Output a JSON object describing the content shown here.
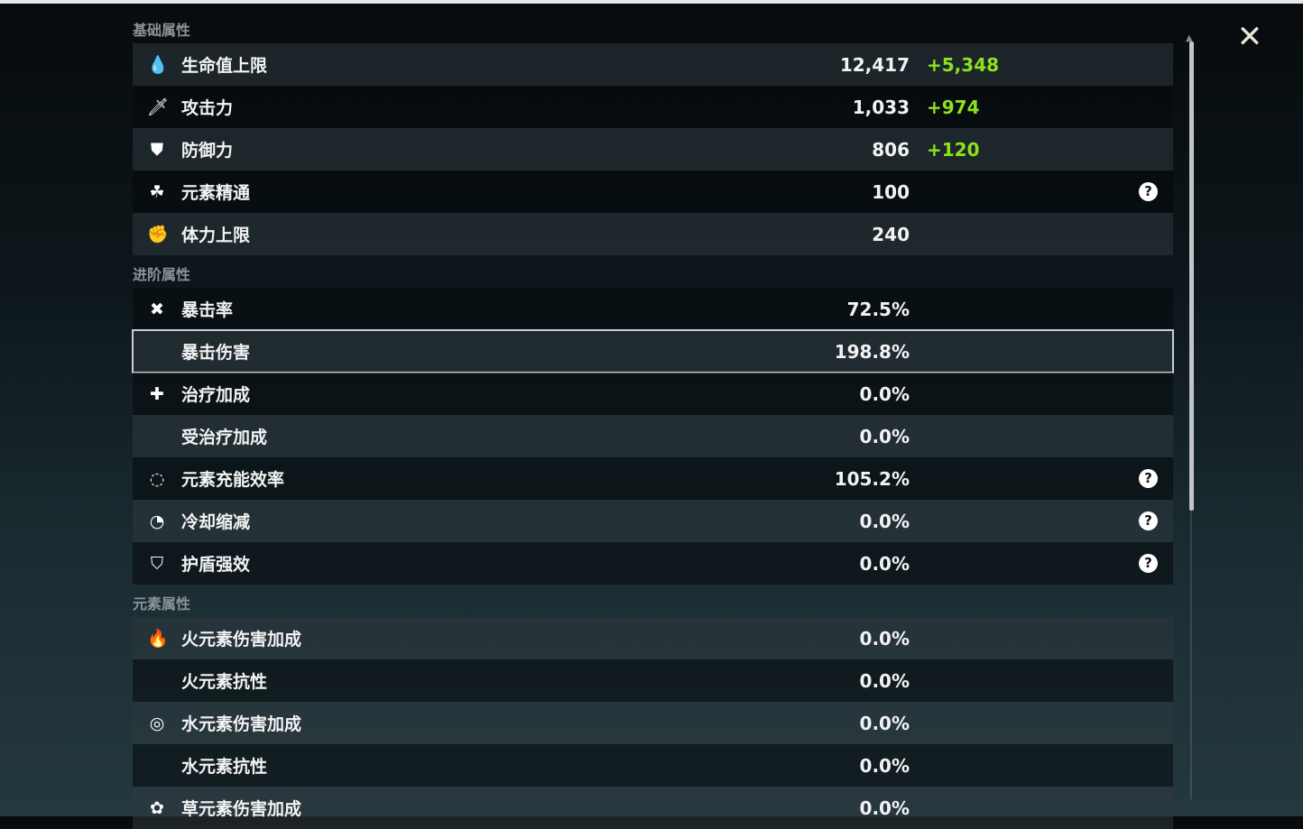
{
  "close_icon": "close-icon",
  "sections": [
    {
      "title": "基础属性",
      "rows": [
        {
          "icon": "hp-drop-icon",
          "glyph": "💧",
          "label": "生命值上限",
          "value": "12,417",
          "bonus": "+5,348",
          "tone": "light"
        },
        {
          "icon": "sword-icon",
          "glyph": "🗡",
          "label": "攻击力",
          "value": "1,033",
          "bonus": "+974",
          "tone": "dark"
        },
        {
          "icon": "shield-icon",
          "glyph": "⛊",
          "label": "防御力",
          "value": "806",
          "bonus": "+120",
          "tone": "light"
        },
        {
          "icon": "elemental-mastery-icon",
          "glyph": "☘",
          "label": "元素精通",
          "value": "100",
          "help": true,
          "tone": "dark"
        },
        {
          "icon": "stamina-icon",
          "glyph": "✊",
          "label": "体力上限",
          "value": "240",
          "tone": "light"
        }
      ]
    },
    {
      "title": "进阶属性",
      "rows": [
        {
          "icon": "crit-rate-icon",
          "glyph": "✖",
          "label": "暴击率",
          "value": "72.5%",
          "tone": "dark"
        },
        {
          "icon": "crit-dmg-icon",
          "glyph": "",
          "label": "暴击伤害",
          "value": "198.8%",
          "tone": "light",
          "selected": true
        },
        {
          "icon": "healing-cross-icon",
          "glyph": "✚",
          "label": "治疗加成",
          "value": "0.0%",
          "tone": "dark"
        },
        {
          "icon": "",
          "glyph": "",
          "label": "受治疗加成",
          "value": "0.0%",
          "tone": "light"
        },
        {
          "icon": "energy-recharge-icon",
          "glyph": "◌",
          "label": "元素充能效率",
          "value": "105.2%",
          "help": true,
          "tone": "dark"
        },
        {
          "icon": "cooldown-icon",
          "glyph": "◔",
          "label": "冷却缩减",
          "value": "0.0%",
          "help": true,
          "tone": "light"
        },
        {
          "icon": "shield-strength-icon",
          "glyph": "⛉",
          "label": "护盾强效",
          "value": "0.0%",
          "help": true,
          "tone": "dark"
        }
      ]
    },
    {
      "title": "元素属性",
      "rows": [
        {
          "icon": "pyro-icon",
          "glyph": "🔥",
          "label": "火元素伤害加成",
          "value": "0.0%",
          "tone": "light"
        },
        {
          "icon": "",
          "glyph": "",
          "label": "火元素抗性",
          "value": "0.0%",
          "tone": "dark"
        },
        {
          "icon": "hydro-icon",
          "glyph": "◎",
          "label": "水元素伤害加成",
          "value": "0.0%",
          "tone": "light"
        },
        {
          "icon": "",
          "glyph": "",
          "label": "水元素抗性",
          "value": "0.0%",
          "tone": "dark"
        },
        {
          "icon": "dendro-icon",
          "glyph": "✿",
          "label": "草元素伤害加成",
          "value": "0.0%",
          "tone": "light"
        }
      ]
    }
  ],
  "help_glyph": "?",
  "colors": {
    "bonus": "#8ee21d",
    "text": "#f3f3f3",
    "section": "#8c9398"
  }
}
